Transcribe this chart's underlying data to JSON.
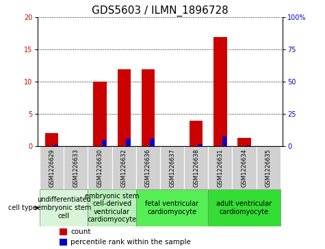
{
  "title": "GDS5603 / ILMN_1896728",
  "samples": [
    "GSM1226629",
    "GSM1226633",
    "GSM1226630",
    "GSM1226632",
    "GSM1226636",
    "GSM1226637",
    "GSM1226638",
    "GSM1226631",
    "GSM1226634",
    "GSM1226635"
  ],
  "counts": [
    2,
    0,
    10,
    12,
    12,
    0,
    4,
    17,
    1.3,
    0
  ],
  "percentile_ranks": [
    1.0,
    0,
    5.0,
    6.0,
    6.0,
    0,
    2.0,
    7.5,
    0.8,
    0
  ],
  "ylim_left": [
    0,
    20
  ],
  "ylim_right": [
    0,
    100
  ],
  "yticks_left": [
    0,
    5,
    10,
    15,
    20
  ],
  "yticks_right": [
    0,
    25,
    50,
    75,
    100
  ],
  "cell_type_groups": [
    {
      "label": "undifferentiated\nembryonic stem\ncell",
      "start": 0,
      "end": 2,
      "color": "#d9f5d9"
    },
    {
      "label": "embryonic stem\ncell-derived\nventricular\ncardiomyocyte",
      "start": 2,
      "end": 4,
      "color": "#b8f0b8"
    },
    {
      "label": "fetal ventricular\ncardiomyocyte",
      "start": 4,
      "end": 7,
      "color": "#55ee55"
    },
    {
      "label": "adult ventricular\ncardiomyocyte",
      "start": 7,
      "end": 10,
      "color": "#33dd33"
    }
  ],
  "bar_color_red": "#cc0000",
  "bar_color_blue": "#0000cc",
  "bar_width": 0.55,
  "blue_bar_width": 0.18,
  "count_label": "count",
  "percentile_label": "percentile rank within the sample",
  "cell_type_label": "cell type",
  "sample_bg_color": "#d0d0d0",
  "plot_bg_color": "#ffffff",
  "title_fontsize": 11,
  "tick_fontsize": 7,
  "label_fontsize": 7.5,
  "group_fontsize": 7
}
